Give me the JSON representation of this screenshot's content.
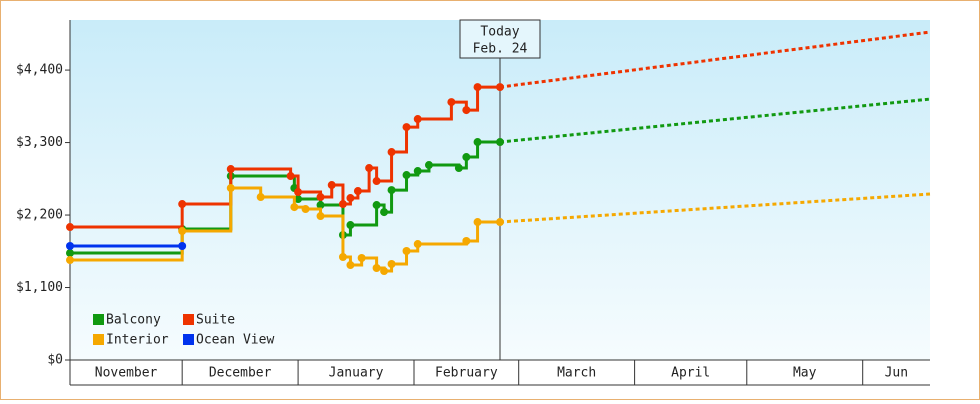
{
  "chart_data": {
    "type": "step-line",
    "xlim": [
      0,
      230
    ],
    "ylim": [
      0,
      5160
    ],
    "yticks": [
      {
        "value": 0,
        "label": "$0"
      },
      {
        "value": 1100,
        "label": "$1,100"
      },
      {
        "value": 2200,
        "label": "$2,200"
      },
      {
        "value": 3300,
        "label": "$3,300"
      },
      {
        "value": 4400,
        "label": "$4,400"
      }
    ],
    "months": [
      {
        "name": "November",
        "start": 0
      },
      {
        "name": "December",
        "start": 30
      },
      {
        "name": "January",
        "start": 61
      },
      {
        "name": "February",
        "start": 92
      },
      {
        "name": "March",
        "start": 120
      },
      {
        "name": "April",
        "start": 151
      },
      {
        "name": "May",
        "start": 181
      },
      {
        "name": "Jun",
        "start": 212
      }
    ],
    "today": {
      "x": 115,
      "label": "Today",
      "date": "Feb. 24"
    },
    "series": [
      {
        "name": "Balcony",
        "color": "#119911",
        "x": [
          0,
          30,
          43,
          60,
          61,
          67,
          73,
          75,
          82,
          84,
          86,
          90,
          93,
          96,
          104,
          106,
          109,
          115
        ],
        "values": [
          1623,
          1988,
          2792,
          2610,
          2443,
          2352,
          1897,
          2048,
          2352,
          2245,
          2579,
          2807,
          2868,
          2959,
          2913,
          3080,
          3308,
          3308
        ],
        "forecast_x": [
          115,
          230
        ],
        "forecast_values": [
          3308,
          3960
        ]
      },
      {
        "name": "Suite",
        "color": "#ee3300",
        "x": [
          0,
          30,
          43,
          59,
          61,
          67,
          70,
          73,
          75,
          77,
          80,
          82,
          86,
          90,
          93,
          102,
          106,
          109,
          115
        ],
        "values": [
          2018,
          2367,
          2898,
          2792,
          2549,
          2473,
          2655,
          2367,
          2458,
          2564,
          2913,
          2716,
          3156,
          3535,
          3657,
          3914,
          3793,
          4142,
          4142
        ],
        "forecast_x": [
          115,
          230
        ],
        "forecast_values": [
          4142,
          4977
        ]
      },
      {
        "name": "Interior",
        "color": "#f5a800",
        "x": [
          0,
          30,
          43,
          51,
          60,
          63,
          67,
          73,
          75,
          78,
          82,
          84,
          86,
          90,
          93,
          106,
          109,
          115
        ],
        "values": [
          1517,
          1957,
          2610,
          2473,
          2321,
          2291,
          2185,
          1563,
          1441,
          1548,
          1396,
          1350,
          1457,
          1654,
          1760,
          1806,
          2094,
          2094
        ],
        "forecast_x": [
          115,
          230
        ],
        "forecast_values": [
          2094,
          2519
        ]
      },
      {
        "name": "Ocean View",
        "color": "#0033ee",
        "x": [
          0,
          30
        ],
        "values": [
          1730,
          1730
        ]
      }
    ]
  }
}
